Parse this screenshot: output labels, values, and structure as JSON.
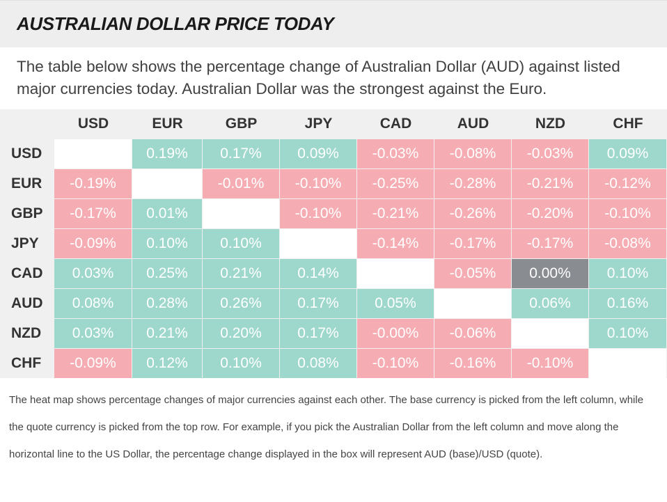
{
  "title": "AUSTRALIAN DOLLAR PRICE TODAY",
  "intro": "The table below shows the percentage change of Australian Dollar (AUD) against listed major currencies today. Australian Dollar was the strongest against the Euro.",
  "colors": {
    "positive": "#9ed8cc",
    "negative": "#f5adb3",
    "neutral": "#898c91",
    "diagonal": "#ffffff"
  },
  "chart_data": {
    "type": "heatmap",
    "columns": [
      "USD",
      "EUR",
      "GBP",
      "JPY",
      "CAD",
      "AUD",
      "NZD",
      "CHF"
    ],
    "rows": [
      "USD",
      "EUR",
      "GBP",
      "JPY",
      "CAD",
      "AUD",
      "NZD",
      "CHF"
    ],
    "values": [
      [
        "",
        "0.19%",
        "0.17%",
        "0.09%",
        "-0.03%",
        "-0.08%",
        "-0.03%",
        "0.09%"
      ],
      [
        "-0.19%",
        "",
        "-0.01%",
        "-0.10%",
        "-0.25%",
        "-0.28%",
        "-0.21%",
        "-0.12%"
      ],
      [
        "-0.17%",
        "0.01%",
        "",
        "-0.10%",
        "-0.21%",
        "-0.26%",
        "-0.20%",
        "-0.10%"
      ],
      [
        "-0.09%",
        "0.10%",
        "0.10%",
        "",
        "-0.14%",
        "-0.17%",
        "-0.17%",
        "-0.08%"
      ],
      [
        "0.03%",
        "0.25%",
        "0.21%",
        "0.14%",
        "",
        "-0.05%",
        "0.00%",
        "0.10%"
      ],
      [
        "0.08%",
        "0.28%",
        "0.26%",
        "0.17%",
        "0.05%",
        "",
        "0.06%",
        "0.16%"
      ],
      [
        "0.03%",
        "0.21%",
        "0.20%",
        "0.17%",
        "-0.00%",
        "-0.06%",
        "",
        "0.10%"
      ],
      [
        "-0.09%",
        "0.12%",
        "0.10%",
        "0.08%",
        "-0.10%",
        "-0.16%",
        "-0.10%",
        ""
      ]
    ]
  },
  "footer": "The heat map shows percentage changes of major currencies against each other. The base currency is picked from the left column, while the quote currency is picked from the top row. For example, if you pick the Australian Dollar from the left column and move along the horizontal line to the US Dollar, the percentage change displayed in the box will represent AUD (base)/USD (quote)."
}
